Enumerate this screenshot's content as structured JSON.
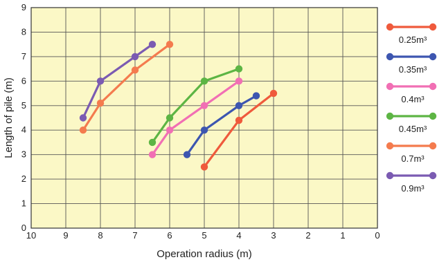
{
  "chart_data": {
    "type": "line",
    "title": "",
    "xlabel": "Operation radius (m)",
    "ylabel": "Length of pile (m)",
    "xlim": [
      10,
      0
    ],
    "ylim": [
      0,
      9
    ],
    "x_reversed": true,
    "grid": true,
    "background_color": "#FBF8C6",
    "grid_color": "#555555",
    "legend_placement": "right",
    "x_ticks": [
      "10",
      "9",
      "8",
      "7",
      "6",
      "5",
      "4",
      "3",
      "2",
      "1",
      "0"
    ],
    "y_ticks": [
      "0",
      "1",
      "2",
      "3",
      "4",
      "5",
      "6",
      "7",
      "8",
      "9"
    ],
    "series": [
      {
        "name": "0.25m³",
        "color": "#EF5A3C",
        "x": [
          5.0,
          4.0,
          3.0
        ],
        "y": [
          2.5,
          4.4,
          5.5
        ]
      },
      {
        "name": "0.35m³",
        "color": "#3D56B0",
        "x": [
          5.5,
          5.0,
          4.0,
          3.5
        ],
        "y": [
          3.0,
          4.0,
          5.0,
          5.4
        ]
      },
      {
        "name": "0.4m³",
        "color": "#F16FB4",
        "x": [
          6.5,
          6.0,
          5.0,
          4.0
        ],
        "y": [
          3.0,
          4.0,
          5.0,
          6.0
        ]
      },
      {
        "name": "0.45m³",
        "color": "#5DB544",
        "x": [
          6.5,
          6.0,
          5.0,
          4.0
        ],
        "y": [
          3.5,
          4.5,
          6.0,
          6.5
        ]
      },
      {
        "name": "0.7m³",
        "color": "#F47B4E",
        "x": [
          8.5,
          8.0,
          7.0,
          6.0
        ],
        "y": [
          4.0,
          5.1,
          6.45,
          7.5
        ]
      },
      {
        "name": "0.9m³",
        "color": "#7B5BB2",
        "x": [
          8.5,
          8.0,
          7.0,
          6.5
        ],
        "y": [
          4.5,
          6.0,
          7.0,
          7.5
        ]
      }
    ]
  }
}
